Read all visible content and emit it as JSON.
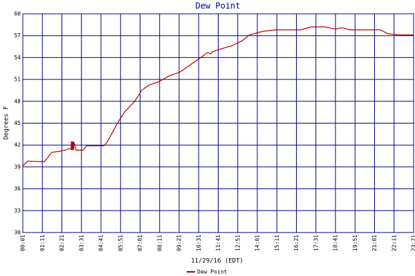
{
  "chart_data": {
    "type": "line",
    "title": "Dew Point",
    "x_label": "11/29/16 (EDT)",
    "y_label": "Degrees F",
    "x": [
      1,
      13,
      18,
      78,
      105,
      142,
      167,
      174,
      175,
      177,
      178,
      179,
      182,
      183,
      184,
      192,
      217,
      229,
      291,
      303,
      340,
      365,
      402,
      427,
      452,
      489,
      526,
      563,
      601,
      638,
      663,
      675,
      680,
      712,
      749,
      787,
      812,
      861,
      910,
      997,
      1034,
      1084,
      1121,
      1146,
      1171,
      1282,
      1307,
      1344,
      1401
    ],
    "series": [
      {
        "name": "Dew Point",
        "color": "#b00000",
        "values": [
          39.1,
          39.6,
          39.8,
          39.7,
          41.0,
          41.2,
          41.5,
          41.4,
          42.5,
          41.3,
          42.5,
          41.3,
          42.5,
          41.3,
          42.4,
          41.3,
          41.3,
          41.9,
          41.9,
          42.4,
          45.0,
          46.5,
          48.0,
          49.5,
          50.2,
          50.7,
          51.5,
          52.0,
          53.0,
          54.0,
          54.7,
          54.5,
          54.8,
          55.2,
          55.6,
          56.3,
          57.1,
          57.6,
          57.8,
          57.8,
          58.2,
          58.2,
          57.9,
          58.1,
          57.8,
          57.8,
          57.3,
          57.1,
          57.1
        ]
      }
    ],
    "xlim": [
      1,
      1401
    ],
    "ylim": [
      30,
      60
    ],
    "yticks": [
      30,
      33,
      36,
      39,
      42,
      45,
      48,
      51,
      54,
      57,
      60
    ],
    "xticks": [
      {
        "value": 1,
        "label": "00:01"
      },
      {
        "value": 71,
        "label": "01:11"
      },
      {
        "value": 141,
        "label": "02:21"
      },
      {
        "value": 211,
        "label": "03:31"
      },
      {
        "value": 281,
        "label": "04:41"
      },
      {
        "value": 351,
        "label": "05:51"
      },
      {
        "value": 421,
        "label": "07:01"
      },
      {
        "value": 491,
        "label": "08:11"
      },
      {
        "value": 561,
        "label": "09:21"
      },
      {
        "value": 631,
        "label": "10:31"
      },
      {
        "value": 701,
        "label": "11:41"
      },
      {
        "value": 771,
        "label": "12:51"
      },
      {
        "value": 841,
        "label": "14:01"
      },
      {
        "value": 911,
        "label": "15:11"
      },
      {
        "value": 981,
        "label": "16:21"
      },
      {
        "value": 1051,
        "label": "17:31"
      },
      {
        "value": 1121,
        "label": "18:41"
      },
      {
        "value": 1191,
        "label": "19:51"
      },
      {
        "value": 1261,
        "label": "21:01"
      },
      {
        "value": 1331,
        "label": "22:11"
      },
      {
        "value": 1401,
        "label": "23:21"
      }
    ],
    "grid": true,
    "grid_color": "#000080",
    "legend": "bottom"
  }
}
